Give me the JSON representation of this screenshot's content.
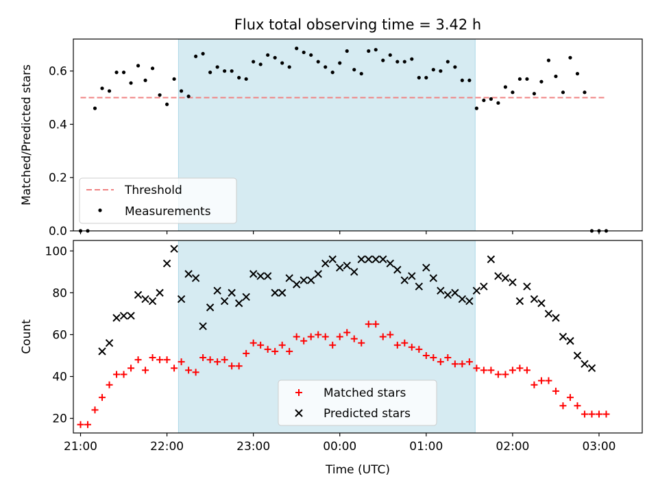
{
  "colors": {
    "background": "#ffffff",
    "shade": "#add8e6",
    "threshold": "#f08080",
    "measurements": "#000000",
    "matched": "#ff0000",
    "predicted": "#000000"
  },
  "chart_data": [
    {
      "type": "scatter",
      "title": "Flux total observing time = 3.42 h",
      "xlabel": "",
      "ylabel": "Matched/Predicted stars",
      "xlim": [
        "20:55",
        "03:30"
      ],
      "ylim": [
        0,
        0.72
      ],
      "yticks": [
        0.0,
        0.2,
        0.4,
        0.6
      ],
      "ytick_labels": [
        "0.0",
        "0.2",
        "0.4",
        "0.6"
      ],
      "xticks": [
        "21:00",
        "22:00",
        "23:00",
        "00:00",
        "01:00",
        "02:00",
        "03:00"
      ],
      "shaded_span": [
        "22:08",
        "01:34"
      ],
      "threshold": {
        "name": "Threshold",
        "y": 0.5,
        "x_range": [
          "21:00",
          "03:05"
        ],
        "style": "dashed"
      },
      "legend": {
        "position": "lower-left",
        "entries": [
          "Threshold",
          "Measurements"
        ]
      },
      "series": [
        {
          "name": "Measurements",
          "marker": "dot",
          "x": [
            "21:00",
            "21:05",
            "21:10",
            "21:15",
            "21:20",
            "21:25",
            "21:30",
            "21:35",
            "21:40",
            "21:45",
            "21:50",
            "21:55",
            "22:00",
            "22:05",
            "22:10",
            "22:15",
            "22:20",
            "22:25",
            "22:30",
            "22:35",
            "22:40",
            "22:45",
            "22:50",
            "22:55",
            "23:00",
            "23:05",
            "23:10",
            "23:15",
            "23:20",
            "23:25",
            "23:30",
            "23:35",
            "23:40",
            "23:45",
            "23:50",
            "23:55",
            "00:00",
            "00:05",
            "00:10",
            "00:15",
            "00:20",
            "00:25",
            "00:30",
            "00:35",
            "00:40",
            "00:45",
            "00:50",
            "00:55",
            "01:00",
            "01:05",
            "01:10",
            "01:15",
            "01:20",
            "01:25",
            "01:30",
            "01:35",
            "01:40",
            "01:45",
            "01:50",
            "01:55",
            "02:00",
            "02:05",
            "02:10",
            "02:15",
            "02:20",
            "02:25",
            "02:30",
            "02:35",
            "02:40",
            "02:45",
            "02:50",
            "02:55",
            "03:00",
            "03:05"
          ],
          "y": [
            0.0,
            0.0,
            0.46,
            0.535,
            0.525,
            0.595,
            0.595,
            0.555,
            0.62,
            0.565,
            0.61,
            0.51,
            0.475,
            0.57,
            0.525,
            0.505,
            0.655,
            0.665,
            0.595,
            0.615,
            0.6,
            0.6,
            0.575,
            0.57,
            0.635,
            0.625,
            0.66,
            0.65,
            0.63,
            0.615,
            0.685,
            0.67,
            0.66,
            0.635,
            0.615,
            0.595,
            0.63,
            0.675,
            0.605,
            0.59,
            0.675,
            0.68,
            0.64,
            0.66,
            0.635,
            0.635,
            0.645,
            0.575,
            0.575,
            0.605,
            0.6,
            0.635,
            0.615,
            0.565,
            0.565,
            0.46,
            0.49,
            0.495,
            0.48,
            0.54,
            0.52,
            0.57,
            0.57,
            0.515,
            0.56,
            0.64,
            0.58,
            0.52,
            0.65,
            0.59,
            0.52,
            0.0,
            0.0,
            0.0
          ]
        }
      ]
    },
    {
      "type": "scatter",
      "title": "",
      "xlabel": "Time (UTC)",
      "ylabel": "Count",
      "xlim": [
        "20:55",
        "03:30"
      ],
      "ylim": [
        13,
        105
      ],
      "yticks": [
        20,
        40,
        60,
        80,
        100
      ],
      "ytick_labels": [
        "20",
        "40",
        "60",
        "80",
        "100"
      ],
      "xticks": [
        "21:00",
        "22:00",
        "23:00",
        "00:00",
        "01:00",
        "02:00",
        "03:00"
      ],
      "shaded_span": [
        "22:08",
        "01:34"
      ],
      "legend": {
        "position": "lower-center",
        "entries": [
          "Matched stars",
          "Predicted stars"
        ]
      },
      "series": [
        {
          "name": "Matched stars",
          "marker": "plus",
          "x": [
            "21:00",
            "21:05",
            "21:10",
            "21:15",
            "21:20",
            "21:25",
            "21:30",
            "21:35",
            "21:40",
            "21:45",
            "21:50",
            "21:55",
            "22:00",
            "22:05",
            "22:10",
            "22:15",
            "22:20",
            "22:25",
            "22:30",
            "22:35",
            "22:40",
            "22:45",
            "22:50",
            "22:55",
            "23:00",
            "23:05",
            "23:10",
            "23:15",
            "23:20",
            "23:25",
            "23:30",
            "23:35",
            "23:40",
            "23:45",
            "23:50",
            "23:55",
            "00:00",
            "00:05",
            "00:10",
            "00:15",
            "00:20",
            "00:25",
            "00:30",
            "00:35",
            "00:40",
            "00:45",
            "00:50",
            "00:55",
            "01:00",
            "01:05",
            "01:10",
            "01:15",
            "01:20",
            "01:25",
            "01:30",
            "01:35",
            "01:40",
            "01:45",
            "01:50",
            "01:55",
            "02:00",
            "02:05",
            "02:10",
            "02:15",
            "02:20",
            "02:25",
            "02:30",
            "02:35",
            "02:40",
            "02:45",
            "02:50",
            "02:55",
            "03:00",
            "03:05"
          ],
          "y": [
            17,
            17,
            24,
            30,
            36,
            41,
            41,
            44,
            48,
            43,
            49,
            48,
            48,
            44,
            47,
            43,
            42,
            49,
            48,
            47,
            48,
            45,
            45,
            51,
            56,
            55,
            53,
            52,
            55,
            52,
            59,
            57,
            59,
            60,
            59,
            55,
            59,
            61,
            58,
            56,
            65,
            65,
            59,
            60,
            55,
            56,
            54,
            53,
            50,
            49,
            47,
            49,
            46,
            46,
            47,
            44,
            43,
            43,
            41,
            41,
            43,
            44,
            43,
            36,
            38,
            38,
            33,
            26,
            30,
            26,
            22,
            22,
            22,
            22
          ]
        },
        {
          "name": "Predicted stars",
          "marker": "x",
          "x": [
            "21:15",
            "21:20",
            "21:25",
            "21:30",
            "21:35",
            "21:40",
            "21:45",
            "21:50",
            "21:55",
            "22:00",
            "22:05",
            "22:10",
            "22:15",
            "22:20",
            "22:25",
            "22:30",
            "22:35",
            "22:40",
            "22:45",
            "22:50",
            "22:55",
            "23:00",
            "23:05",
            "23:10",
            "23:15",
            "23:20",
            "23:25",
            "23:30",
            "23:35",
            "23:40",
            "23:45",
            "23:50",
            "23:55",
            "00:00",
            "00:05",
            "00:10",
            "00:15",
            "00:20",
            "00:25",
            "00:30",
            "00:35",
            "00:40",
            "00:45",
            "00:50",
            "00:55",
            "01:00",
            "01:05",
            "01:10",
            "01:15",
            "01:20",
            "01:25",
            "01:30",
            "01:35",
            "01:40",
            "01:45",
            "01:50",
            "01:55",
            "02:00",
            "02:05",
            "02:10",
            "02:15",
            "02:20",
            "02:25",
            "02:30",
            "02:35",
            "02:40",
            "02:45",
            "02:50",
            "02:55"
          ],
          "y": [
            52,
            56,
            68,
            69,
            69,
            79,
            77,
            76,
            80,
            94,
            101,
            77,
            89,
            87,
            64,
            73,
            81,
            76,
            80,
            75,
            78,
            89,
            88,
            88,
            80,
            80,
            87,
            84,
            86,
            86,
            89,
            94,
            96,
            92,
            93,
            90,
            96,
            96,
            96,
            96,
            94,
            91,
            86,
            88,
            83,
            92,
            87,
            81,
            79,
            80,
            77,
            76,
            81,
            83,
            96,
            88,
            87,
            85,
            76,
            83,
            77,
            75,
            70,
            68,
            59,
            57,
            50,
            46,
            44
          ]
        }
      ]
    }
  ]
}
